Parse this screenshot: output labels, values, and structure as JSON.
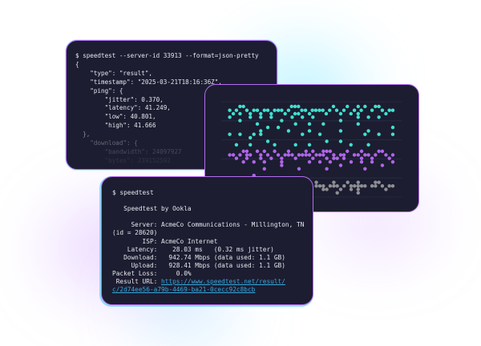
{
  "json_window": {
    "command": "$ speedtest --server-id 33913 --format=json-pretty",
    "lines": [
      "{",
      "    \"type\": \"result\",",
      "    \"timestamp\": \"2025-03-21T18:16:36Z\",",
      "    \"ping\": {",
      "        \"jitter\": 0.370,",
      "        \"latency\": 41.249,",
      "        \"low\": 40.801,",
      "        \"high\": 41.666",
      "  },",
      "    \"download\": {",
      "        \"bandwidth\": 24097927",
      "        \"bytes\": 239152592"
    ]
  },
  "result_window": {
    "command": "$ speedtest",
    "title": "   Speedtest by Ookla",
    "lines": [
      "     Server: AcmeCo Communications - Millington, TN",
      "(id = 28620)",
      "        ISP: AcmeCo Internet",
      "    Latency:    28.03 ms   (0.32 ms jitter)",
      "   Download:   942.74 Mbps (data used: 1.1 GB)",
      "     Upload:   928.41 Mbps (data used: 1.1 GB)",
      "Packet Loss:     0.0%"
    ],
    "result_url_label": " Result URL: ",
    "result_url_1": "https://www.speedtest.net/result/",
    "result_url_2": "c/2d74ee56-a79b-4469-ba21-0cecc92c8bcb"
  },
  "chart_data": {
    "type": "scatter",
    "grid": true,
    "xlim": [
      0,
      100
    ],
    "ylim": [
      0,
      5
    ],
    "series": [
      {
        "color": "#3fe0d0",
        "rows": [
          {
            "y": 0.25,
            "x": [
              10.4,
              12.3,
              39,
              40.9,
              42.8,
              62.2,
              69.9,
              75.9,
              79.7,
              85.5,
              87.4
            ]
          },
          {
            "y": 0.45,
            "x": [
              4.7,
              8.4,
              14.2,
              18.1,
              20,
              23.9,
              25.8,
              29.6,
              31.6,
              33.5,
              37.3,
              44.7,
              46.7,
              50.5,
              52.4,
              54.4,
              56.3,
              60.1,
              64,
              68,
              73.8,
              77.6,
              83.6,
              89.3,
              93.2,
              95.1
            ]
          },
          {
            "y": 0.63,
            "x": [
              6.7,
              10.4,
              16.1,
              21.9,
              27.7,
              35.4,
              40.9,
              42.8,
              48.9,
              58.2,
              66.2,
              71.9,
              75.9,
              91.3
            ]
          },
          {
            "y": 0.81,
            "x": [
              4.7,
              16.1,
              21.9,
              27.7,
              39.3,
              45,
              50.8,
              75.9,
              81.6,
              87.4
            ]
          },
          {
            "y": 0.99,
            "x": [
              10.4,
              33.5,
              66.2
            ]
          },
          {
            "y": 1.17,
            "x": [
              20,
              41.2,
              48.9,
              56.6,
              75.9
            ]
          },
          {
            "y": 1.35,
            "x": [
              25.8,
              31.6,
              95.1
            ]
          },
          {
            "y": 1.53,
            "x": [
              21.9,
              37.3,
              48.9,
              66.2,
              81.6
            ]
          },
          {
            "y": 1.71,
            "x": [
              4.7,
              10.4,
              18.1,
              21.9,
              45,
              54.7,
              79.7,
              87.4,
              95.1
            ]
          },
          {
            "y": 1.89,
            "x": [
              16.1
            ]
          },
          {
            "y": 2.08,
            "x": [
              25.8,
              58.5,
              66.2
            ]
          },
          {
            "y": 2.26,
            "x": [
              8.4,
              16.1,
              29.6,
              41.2,
              48.9,
              71.9,
              81.6
            ]
          }
        ]
      },
      {
        "color": "#b065e8",
        "rows": [
          {
            "y": 2.6,
            "x": [
              12.3,
              14.2,
              20,
              23.9,
              29.6,
              37.3,
              47,
              50.8,
              56.6,
              58.5,
              60.4,
              69.9,
              77.8,
              87.4,
              89.3
            ]
          },
          {
            "y": 2.79,
            "x": [
              4.7,
              6.7,
              10.4,
              14.2,
              16.1,
              21.9,
              25.8,
              31.6,
              35.4,
              37.3,
              39.3,
              43.1,
              45,
              47,
              48.9,
              52.7,
              54.7,
              56.6,
              62.4,
              66.2,
              68,
              73.8,
              75.9,
              79.7,
              81.6,
              85.5,
              91.3,
              95.1
            ]
          },
          {
            "y": 2.97,
            "x": [
              8.4,
              14.2,
              21.9,
              27.7,
              33.5,
              41.2,
              50.8,
              58.5,
              62.4,
              64.3,
              68,
              77.8,
              83.6,
              93.2
            ]
          },
          {
            "y": 3.16,
            "x": [
              12.3,
              18.1,
              23.9,
              33.5,
              48.9,
              54.7,
              60.4,
              72,
              77.8,
              83.6,
              95.1
            ]
          },
          {
            "y": 3.34,
            "x": [
              33.5,
              66.2,
              89.3
            ]
          },
          {
            "y": 3.52,
            "x": [
              23.9,
              43.1,
              58.5,
              79.7
            ]
          },
          {
            "y": 3.87,
            "x": [
              18.1
            ]
          }
        ]
      },
      {
        "color": "#8e8e94",
        "rows": [
          {
            "y": 4.23,
            "x": [
              52.7,
              62.4,
              70.1,
              75.9,
              85.5,
              87.4
            ]
          },
          {
            "y": 4.42,
            "x": [
              52.7,
              54.7,
              56.6,
              60.4,
              62.4,
              64.3,
              68.1,
              72,
              73.9,
              75.9,
              77.8,
              79.7,
              83.6,
              85.5,
              89.3,
              93.2,
              95.1
            ]
          },
          {
            "y": 4.6,
            "x": [
              56.6,
              58.5,
              66.2,
              72,
              75.9,
              91.3
            ]
          },
          {
            "y": 4.78,
            "x": [
              64.3,
              75.9
            ]
          }
        ]
      }
    ]
  }
}
